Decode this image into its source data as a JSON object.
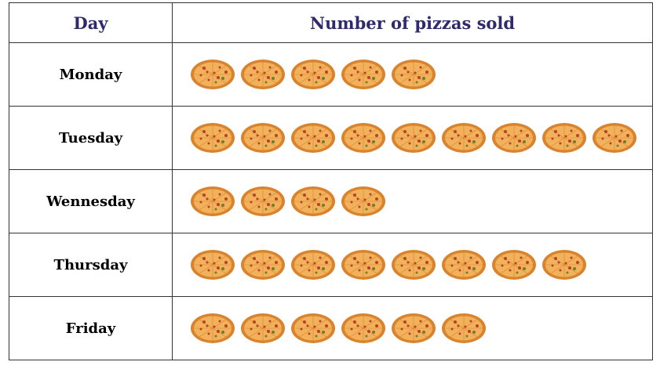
{
  "chart_data": {
    "type": "pictograph",
    "headers": {
      "category": "Day",
      "value": "Number of pizzas sold"
    },
    "icon": "pizza-icon",
    "categories": [
      "Monday",
      "Tuesday",
      "Wennesday",
      "Thursday",
      "Friday"
    ],
    "values": [
      5,
      9,
      4,
      8,
      6
    ]
  },
  "colors": {
    "header_text": "#2e2a6b",
    "pizza_crust": "#d9832e",
    "pizza_cheese": "#f2b25c",
    "pizza_topping": "#b8402a",
    "pizza_herb": "#6f7d2c",
    "grid_line": "#333333"
  }
}
